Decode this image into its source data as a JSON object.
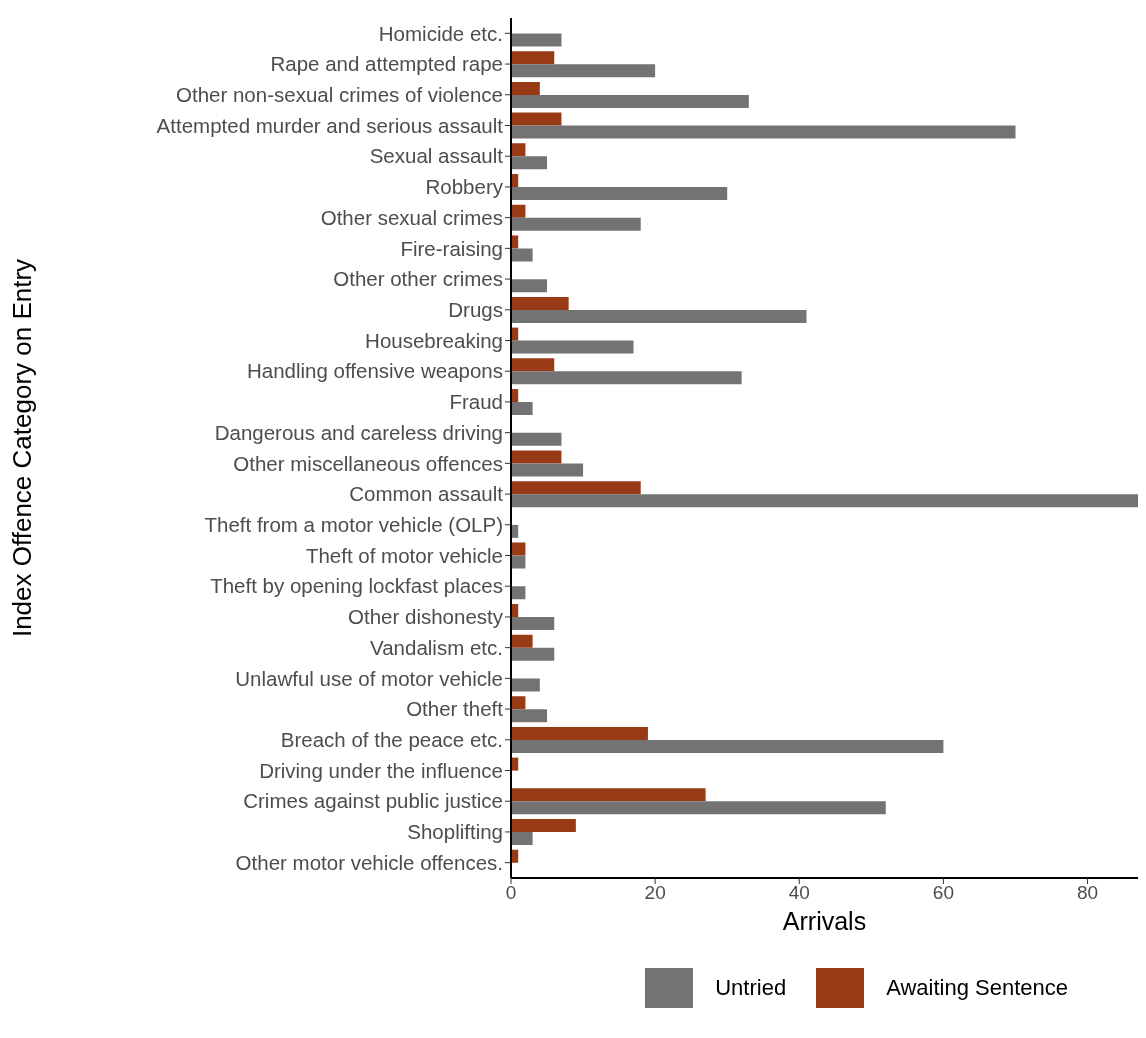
{
  "chart_data": {
    "type": "bar",
    "orientation": "horizontal",
    "xlabel": "Arrivals",
    "ylabel": "Index Offence Category on Entry",
    "categories": [
      "Homicide etc.",
      "Rape and attempted rape",
      "Other non-sexual crimes of violence",
      "Attempted murder and serious assault",
      "Sexual assault",
      "Robbery",
      "Other sexual crimes",
      "Fire-raising",
      "Other other crimes",
      "Drugs",
      "Housebreaking",
      "Handling offensive weapons",
      "Fraud",
      "Dangerous and careless driving",
      "Other miscellaneous offences",
      "Common assault",
      "Theft from a motor vehicle (OLP)",
      "Theft of motor vehicle",
      "Theft by opening lockfast places",
      "Other dishonesty",
      "Vandalism etc.",
      "Unlawful use of motor vehicle",
      "Other theft",
      "Breach of the peace etc.",
      "Driving under the influence",
      "Crimes against public justice",
      "Shoplifting",
      "Other motor vehicle offences."
    ],
    "series": [
      {
        "name": "Untried",
        "color": "#737373",
        "values": [
          7,
          20,
          33,
          70,
          5,
          30,
          18,
          3,
          5,
          41,
          17,
          32,
          3,
          7,
          10,
          87,
          1,
          2,
          2,
          6,
          6,
          4,
          5,
          60,
          null,
          52,
          3,
          null
        ]
      },
      {
        "name": "Awaiting Sentence",
        "color": "#993a16",
        "values": [
          null,
          6,
          4,
          7,
          2,
          1,
          2,
          1,
          null,
          8,
          1,
          6,
          1,
          null,
          7,
          18,
          null,
          2,
          null,
          1,
          3,
          null,
          2,
          19,
          1,
          27,
          9,
          1
        ]
      }
    ],
    "xlim": [
      0,
      87
    ],
    "xticks": [
      0,
      20,
      40,
      60,
      80
    ],
    "grid": false,
    "legend": "bottom right"
  }
}
